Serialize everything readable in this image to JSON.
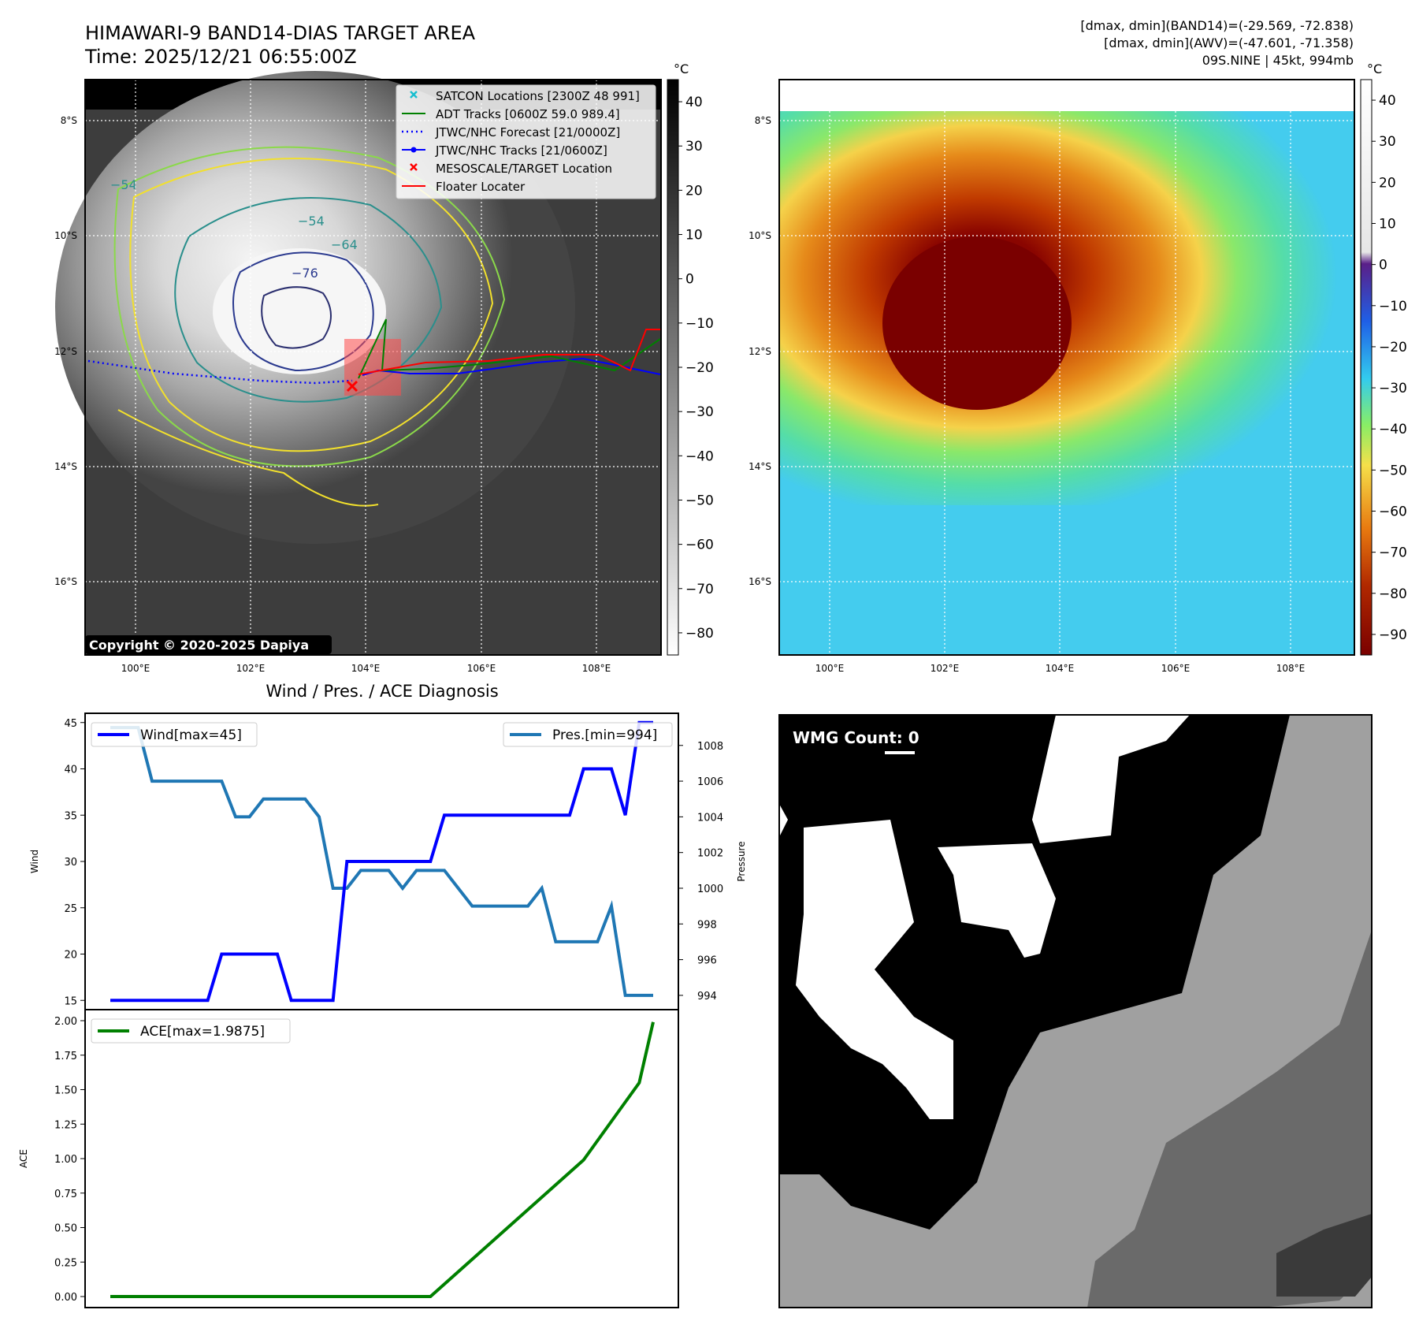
{
  "header": {
    "title_line1": "HIMAWARI-9 BAND14-DIAS TARGET AREA",
    "title_line2": "Time: 2025/12/21 06:55:00Z",
    "info_line1": "[dmax, dmin](BAND14)=(-29.569, -72.838)",
    "info_line2": "[dmax, dmin](AWV)=(-47.601, -71.358)",
    "info_line3": "09S.NINE | 45kt, 994mb"
  },
  "ir_map": {
    "unit": "°C",
    "lat_ticks": [
      "8°S",
      "10°S",
      "12°S",
      "14°S",
      "16°S"
    ],
    "lon_ticks": [
      "100°E",
      "102°E",
      "104°E",
      "106°E",
      "108°E"
    ],
    "colorbar_ticks": [
      "40",
      "30",
      "20",
      "10",
      "0",
      "−10",
      "−20",
      "−30",
      "−40",
      "−50",
      "−60",
      "−70",
      "−80"
    ],
    "contour_labels": [
      "−54",
      "−64",
      "−76",
      "−54"
    ],
    "copyright": "Copyright © 2020-2025 Dapiya",
    "legend": [
      {
        "label": "SATCON Locations [2300Z 48 991]",
        "color": "#17becf",
        "marker": "x"
      },
      {
        "label": "ADT Tracks [0600Z 59.0 989.4]",
        "color": "#008000",
        "marker": "line"
      },
      {
        "label": "JTWC/NHC Forecast [21/0000Z]",
        "color": "#0000ff",
        "marker": "dotted"
      },
      {
        "label": "JTWC/NHC Tracks [21/0600Z]",
        "color": "#0000ff",
        "marker": "line-dot"
      },
      {
        "label": "MESOSCALE/TARGET Location",
        "color": "#ff0000",
        "marker": "x"
      },
      {
        "label": "Floater Locater",
        "color": "#ff0000",
        "marker": "line"
      }
    ]
  },
  "awv_map": {
    "unit": "°C",
    "lat_ticks": [
      "8°S",
      "10°S",
      "12°S",
      "14°S",
      "16°S"
    ],
    "lon_ticks": [
      "100°E",
      "102°E",
      "104°E",
      "106°E",
      "108°E"
    ],
    "colorbar_ticks": [
      "40",
      "30",
      "20",
      "10",
      "0",
      "−10",
      "−20",
      "−30",
      "−40",
      "−50",
      "−60",
      "−70",
      "−80",
      "−90"
    ]
  },
  "diag_title": "Wind / Pres. / ACE Diagnosis",
  "wmg": {
    "label": "WMG Count: 0"
  },
  "colors": {
    "wind": "#0000ff",
    "pressure": "#1f77b4",
    "ace": "#008000"
  },
  "chart_data": [
    {
      "type": "line",
      "title": "Wind / Pres. / ACE Diagnosis",
      "x": [
        0,
        1,
        2,
        3,
        4,
        5,
        6,
        7,
        8,
        9,
        10,
        11,
        12,
        13,
        14,
        15,
        16,
        17,
        18,
        19,
        20,
        21,
        22,
        23,
        24,
        25,
        26,
        27,
        28,
        29,
        30,
        31,
        32,
        33,
        34,
        35,
        36,
        37,
        38,
        39
      ],
      "ylabel": "Wind",
      "ylim": [
        14,
        46
      ],
      "yticks": [
        "15",
        "20",
        "25",
        "30",
        "35",
        "40",
        "45"
      ],
      "y2label": "Pressure",
      "y2lim": [
        993.2,
        1009.8
      ],
      "y2ticks": [
        "994",
        "996",
        "998",
        "1000",
        "1002",
        "1004",
        "1006",
        "1008"
      ],
      "series": [
        {
          "name": "Wind[max=45]",
          "axis": "left",
          "values": [
            15,
            15,
            15,
            15,
            15,
            15,
            15,
            15,
            20,
            20,
            20,
            20,
            20,
            15,
            15,
            15,
            15,
            30,
            30,
            30,
            30,
            30,
            30,
            30,
            35,
            35,
            35,
            35,
            35,
            35,
            35,
            35,
            35,
            35,
            40,
            40,
            40,
            35,
            45,
            45
          ]
        },
        {
          "name": "Pres.[min=994]",
          "axis": "right",
          "values": [
            1009,
            1009,
            1009,
            1006,
            1006,
            1006,
            1006,
            1006,
            1006,
            1004,
            1004,
            1005,
            1005,
            1005,
            1005,
            1004,
            1000,
            1000,
            1001,
            1001,
            1001,
            1000,
            1001,
            1001,
            1001,
            1000,
            999,
            999,
            999,
            999,
            999,
            1000,
            997,
            997,
            997,
            997,
            999,
            994,
            994,
            994
          ]
        }
      ]
    },
    {
      "type": "line",
      "x": [
        0,
        1,
        2,
        3,
        4,
        5,
        6,
        7,
        8,
        9,
        10,
        11,
        12,
        13,
        14,
        15,
        16,
        17,
        18,
        19,
        20,
        21,
        22,
        23,
        24,
        25,
        26,
        27,
        28,
        29,
        30,
        31,
        32,
        33,
        34,
        35,
        36,
        37,
        38,
        39
      ],
      "ylabel": "ACE",
      "ylim": [
        -0.08,
        2.08
      ],
      "yticks": [
        "0.00",
        "0.25",
        "0.50",
        "0.75",
        "1.00",
        "1.25",
        "1.50",
        "1.75",
        "2.00"
      ],
      "series": [
        {
          "name": "ACE[max=1.9875]",
          "values": [
            0,
            0,
            0,
            0,
            0,
            0,
            0,
            0,
            0,
            0,
            0,
            0,
            0,
            0,
            0,
            0,
            0,
            0,
            0,
            0,
            0,
            0,
            0,
            0,
            0.09,
            0.18,
            0.27,
            0.36,
            0.45,
            0.54,
            0.63,
            0.72,
            0.81,
            0.9,
            0.99,
            1.13,
            1.27,
            1.41,
            1.55,
            1.99
          ]
        }
      ]
    }
  ]
}
